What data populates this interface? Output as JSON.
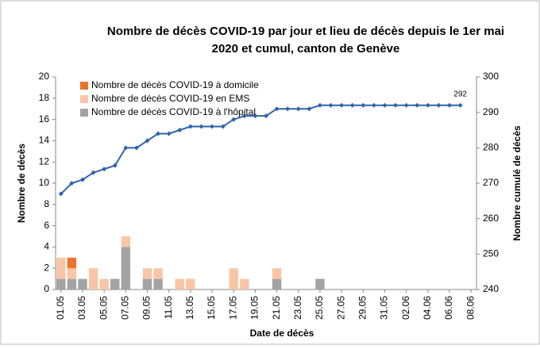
{
  "chart_data": {
    "type": "bar",
    "title": [
      "Nombre de décès COVID-19 par jour et lieu de décès depuis le 1er mai",
      "2020 et cumul, canton de Genève"
    ],
    "x_label": "Date de décès",
    "y_label": "Nombre de décès",
    "y2_label": "Nombre cumulé de décès",
    "categories": [
      "01.05",
      null,
      "03.05",
      null,
      "05.05",
      null,
      "07.05",
      null,
      "09.05",
      null,
      "11.05",
      null,
      "13.05",
      null,
      "15.05",
      null,
      "17.05",
      null,
      "19.05",
      null,
      "21.05",
      null,
      "23.05",
      null,
      "25.05",
      null,
      "27.05",
      null,
      "29.05",
      null,
      "31.05",
      null,
      "02.06",
      null,
      "04.06",
      null,
      "06.06",
      null,
      "08.06"
    ],
    "ylim": [
      0,
      20
    ],
    "yticks": [
      0,
      2,
      4,
      6,
      8,
      10,
      12,
      14,
      16,
      18,
      20
    ],
    "y2lim": [
      240,
      300
    ],
    "y2ticks": [
      240,
      250,
      260,
      270,
      280,
      290,
      300
    ],
    "legend": "top-left",
    "series": [
      {
        "name": "Nombre de décès COVID-19 à l'hôpital",
        "color": "#a3a3a3",
        "stack": true,
        "values": [
          1,
          1,
          1,
          0,
          0,
          1,
          4,
          0,
          1,
          1,
          0,
          0,
          0,
          0,
          0,
          0,
          0,
          0,
          0,
          0,
          1,
          0,
          0,
          0,
          1,
          0,
          0,
          0,
          0,
          0,
          0,
          0,
          0,
          0,
          0,
          0,
          0,
          0,
          0
        ]
      },
      {
        "name": "Nombre de décès COVID-19 en EMS",
        "color": "#f8c6a6",
        "stack": true,
        "values": [
          2,
          1,
          0,
          2,
          1,
          0,
          1,
          0,
          1,
          1,
          0,
          1,
          1,
          0,
          0,
          0,
          2,
          1,
          0,
          0,
          1,
          0,
          0,
          0,
          0,
          0,
          0,
          0,
          0,
          0,
          0,
          0,
          0,
          0,
          0,
          0,
          0,
          0,
          0
        ]
      },
      {
        "name": "Nombre de décès COVID-19 à domicile",
        "color": "#e8762c",
        "stack": true,
        "values": [
          0,
          1,
          0,
          0,
          0,
          0,
          0,
          0,
          0,
          0,
          0,
          0,
          0,
          0,
          0,
          0,
          0,
          0,
          0,
          0,
          0,
          0,
          0,
          0,
          0,
          0,
          0,
          0,
          0,
          0,
          0,
          0,
          0,
          0,
          0,
          0,
          0,
          0,
          0
        ]
      },
      {
        "name": "Cumul",
        "type": "line",
        "axis": "y2",
        "color": "#2e64ab",
        "values": [
          267,
          270,
          271,
          273,
          274,
          275,
          280,
          280,
          282,
          284,
          284,
          285,
          286,
          286,
          286,
          286,
          288,
          289,
          289,
          289,
          291,
          291,
          291,
          291,
          292,
          292,
          292,
          292,
          292,
          292,
          292,
          292,
          292,
          292,
          292,
          292,
          292,
          292,
          null
        ]
      }
    ],
    "legend_order": [
      2,
      1,
      0
    ]
  }
}
